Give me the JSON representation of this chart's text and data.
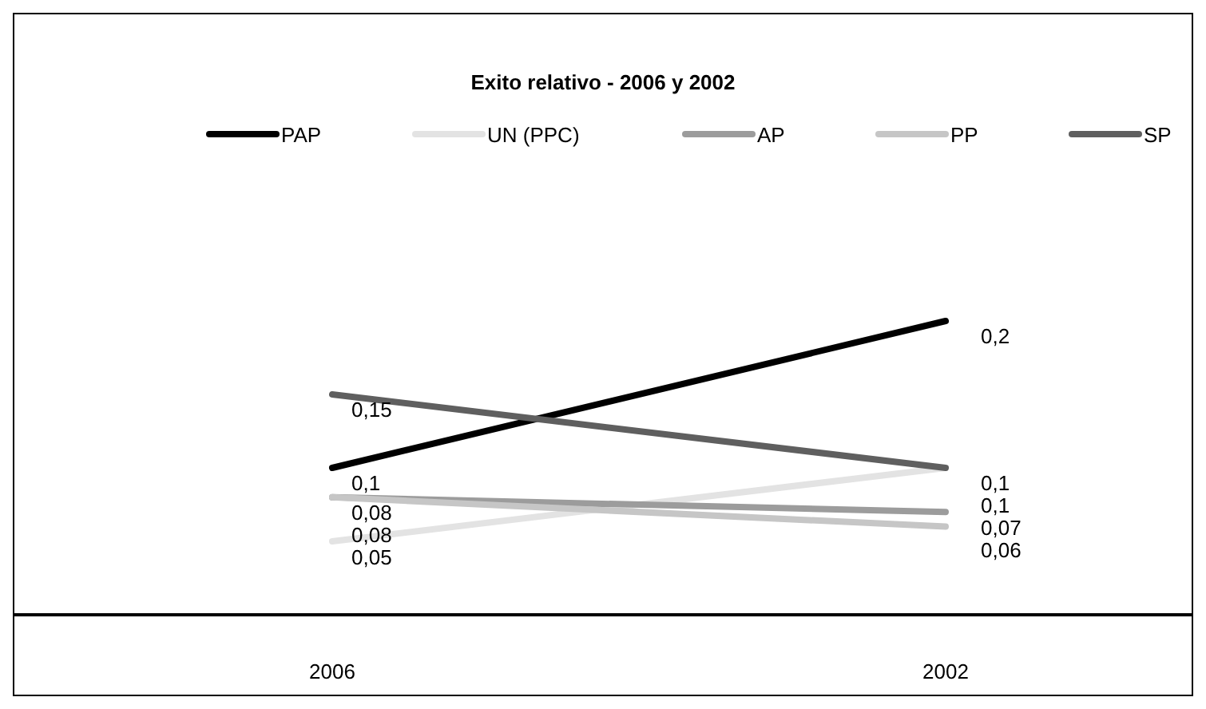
{
  "chart_data": {
    "type": "line",
    "title": "Exito relativo - 2006 y 2002",
    "categories": [
      "2006",
      "2002"
    ],
    "legend": "top",
    "tick_labels": "x",
    "line_style": "solid",
    "series": [
      {
        "name": "PAP",
        "color": "#000000",
        "values": [
          0.1,
          0.2
        ],
        "value_labels": [
          "0,1",
          "0,2"
        ]
      },
      {
        "name": "UN (PPC)",
        "color": "#e3e3e3",
        "values": [
          0.05,
          0.1
        ],
        "value_labels": [
          "0,05",
          "0,1"
        ]
      },
      {
        "name": "AP",
        "color": "#9c9c9c",
        "values": [
          0.08,
          0.07
        ],
        "value_labels": [
          "0,08",
          "0,07"
        ]
      },
      {
        "name": "PP",
        "color": "#c6c6c6",
        "values": [
          0.08,
          0.06
        ],
        "value_labels": [
          "0,08",
          "0,06"
        ]
      },
      {
        "name": "SP",
        "color": "#5f5f5f",
        "values": [
          0.15,
          0.1
        ],
        "value_labels": [
          "0,15",
          "0,1"
        ]
      }
    ]
  }
}
